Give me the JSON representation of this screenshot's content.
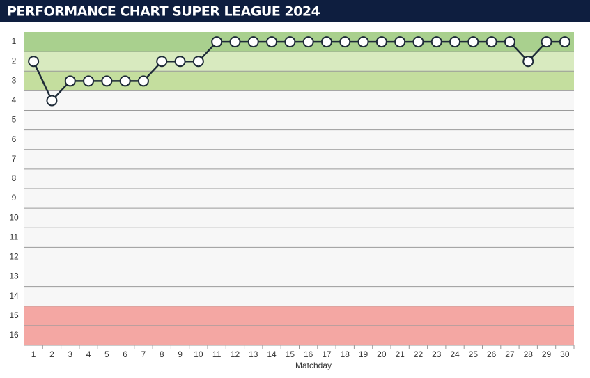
{
  "chart_data": {
    "type": "line",
    "title": "PERFORMANCE CHART SUPER LEAGUE 2024",
    "x_label": "Matchday",
    "x": [
      1,
      2,
      3,
      4,
      5,
      6,
      7,
      8,
      9,
      10,
      11,
      12,
      13,
      14,
      15,
      16,
      17,
      18,
      19,
      20,
      21,
      22,
      23,
      24,
      25,
      26,
      27,
      28,
      29,
      30
    ],
    "xlim": [
      0.5,
      30.5
    ],
    "ylim": [
      0.5,
      16.5
    ],
    "inverted": true,
    "yticks": [
      1,
      2,
      3,
      4,
      5,
      6,
      7,
      8,
      9,
      10,
      11,
      12,
      13,
      14,
      15,
      16
    ],
    "bands": [
      {
        "from": 1,
        "to": 1,
        "color": "#a9d08e"
      },
      {
        "from": 2,
        "to": 2,
        "color": "#d8eabf"
      },
      {
        "from": 3,
        "to": 3,
        "color": "#c4de9e"
      },
      {
        "from": 15,
        "to": 16,
        "color": "#f4a7a3"
      }
    ],
    "background": "#f7f7f7",
    "grid": true,
    "series": [
      {
        "color": "#1e2b38",
        "values": [
          2,
          4,
          3,
          3,
          3,
          3,
          3,
          2,
          2,
          2,
          1,
          1,
          1,
          1,
          1,
          1,
          1,
          1,
          1,
          1,
          1,
          1,
          1,
          1,
          1,
          1,
          1,
          2,
          1,
          1
        ]
      }
    ]
  }
}
